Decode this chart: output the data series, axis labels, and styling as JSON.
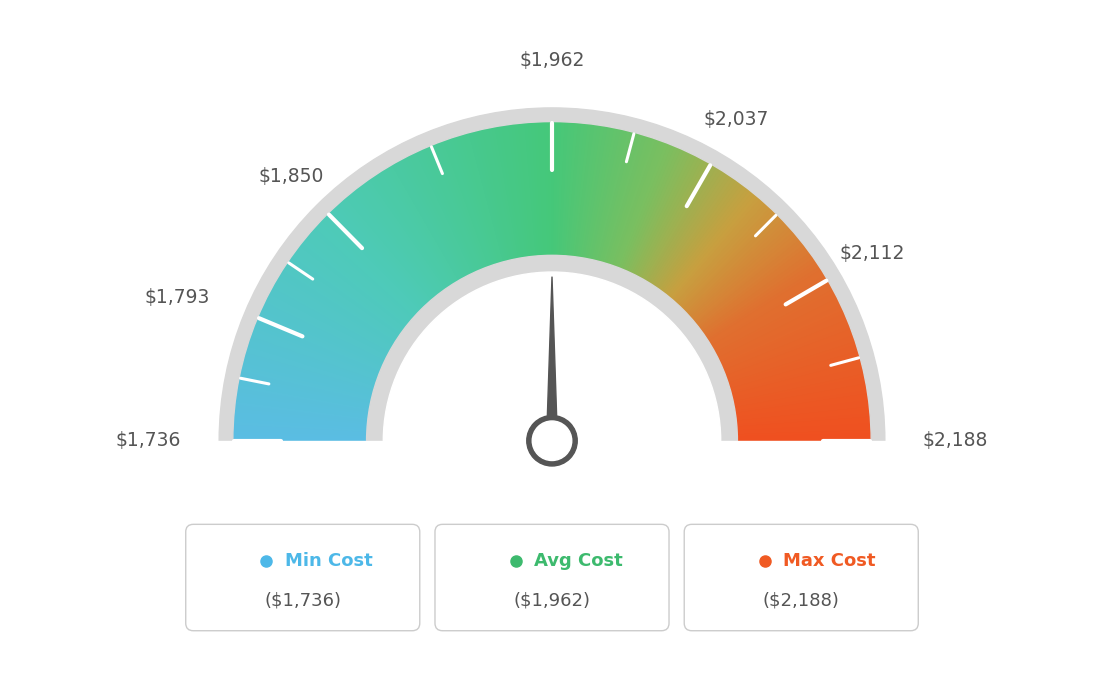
{
  "min_val": 1736,
  "max_val": 2188,
  "avg_val": 1962,
  "labels": [
    "$1,736",
    "$1,793",
    "$1,850",
    "$1,962",
    "$2,037",
    "$2,112",
    "$2,188"
  ],
  "label_values": [
    1736,
    1793,
    1850,
    1962,
    2037,
    2112,
    2188
  ],
  "legend_items": [
    {
      "label": "Min Cost",
      "value": "($1,736)",
      "color": "#4db8e8"
    },
    {
      "label": "Avg Cost",
      "value": "($1,962)",
      "color": "#3dba6e"
    },
    {
      "label": "Max Cost",
      "value": "($2,188)",
      "color": "#f05a23"
    }
  ],
  "background_color": "#ffffff",
  "needle_value": 1962,
  "tick_color": "#ffffff",
  "label_color": "#555555",
  "color_stops": [
    [
      0.0,
      "#5bbde4"
    ],
    [
      0.25,
      "#4ecbb8"
    ],
    [
      0.5,
      "#45c87a"
    ],
    [
      0.62,
      "#7bbf60"
    ],
    [
      0.72,
      "#c8a040"
    ],
    [
      0.82,
      "#e07030"
    ],
    [
      1.0,
      "#f05020"
    ]
  ]
}
